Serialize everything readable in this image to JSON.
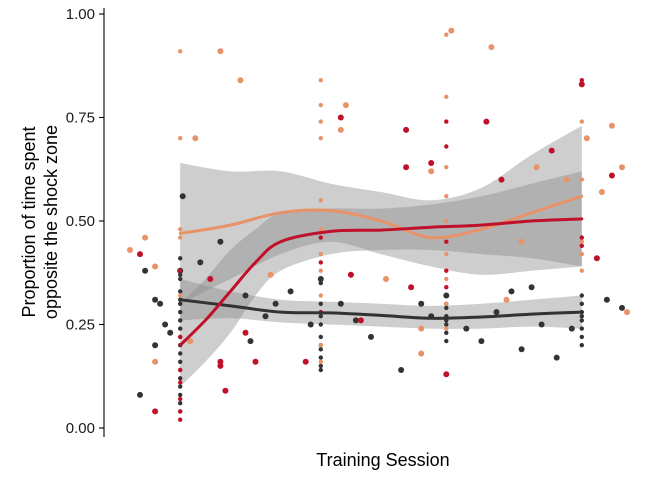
{
  "chart_data": {
    "type": "scatter",
    "xlabel": "Training Session",
    "ylabel_lines": [
      "Proportion of time spent",
      "opposite the shock zone"
    ],
    "ylim": [
      0,
      1
    ],
    "xlim": [
      0,
      10
    ],
    "yticks": [
      0.0,
      0.25,
      0.5,
      0.75,
      1.0
    ],
    "ytick_labels": [
      "0.00",
      "0.25",
      "0.50",
      "0.75",
      "1.00"
    ],
    "x_tick_labels_shown": false,
    "grid": false,
    "legend": "none",
    "series": [
      {
        "color": "#333333",
        "smooth_x": [
          1,
          2,
          3,
          4,
          5,
          6,
          7,
          8,
          9
        ],
        "smooth_y": [
          0.31,
          0.295,
          0.28,
          0.278,
          0.272,
          0.265,
          0.268,
          0.275,
          0.28
        ],
        "band_low": [
          0.26,
          0.265,
          0.255,
          0.25,
          0.245,
          0.24,
          0.24,
          0.245,
          0.24
        ],
        "band_high": [
          0.36,
          0.33,
          0.31,
          0.305,
          0.3,
          0.295,
          0.3,
          0.31,
          0.32
        ],
        "points": [
          [
            0.2,
            0.08
          ],
          [
            0.5,
            0.31
          ],
          [
            0.7,
            0.25
          ],
          [
            0.8,
            0.23
          ],
          [
            1.0,
            0.38
          ],
          [
            0.6,
            0.3
          ],
          [
            1.4,
            0.4
          ],
          [
            0.3,
            0.38
          ],
          [
            1.05,
            0.56
          ],
          [
            0.5,
            0.2
          ],
          [
            2.3,
            0.32
          ],
          [
            2.4,
            0.21
          ],
          [
            2.7,
            0.27
          ],
          [
            2.9,
            0.3
          ],
          [
            3.2,
            0.33
          ],
          [
            3.6,
            0.25
          ],
          [
            4.2,
            0.3
          ],
          [
            4.5,
            0.26
          ],
          [
            4.8,
            0.22
          ],
          [
            5.4,
            0.14
          ],
          [
            6.0,
            0.27
          ],
          [
            6.3,
            0.32
          ],
          [
            6.7,
            0.24
          ],
          [
            7.0,
            0.21
          ],
          [
            7.3,
            0.28
          ],
          [
            7.8,
            0.19
          ],
          [
            8.2,
            0.25
          ],
          [
            8.5,
            0.17
          ],
          [
            8.8,
            0.24
          ],
          [
            9.5,
            0.31
          ],
          [
            9.8,
            0.29
          ],
          [
            1.8,
            0.45
          ],
          [
            3.8,
            0.36
          ],
          [
            5.8,
            0.3
          ],
          [
            7.6,
            0.33
          ],
          [
            8.0,
            0.34
          ]
        ],
        "column_points": [
          [
            1,
            0.36
          ],
          [
            1,
            0.33
          ],
          [
            1,
            0.31
          ],
          [
            1,
            0.28
          ],
          [
            1,
            0.26
          ],
          [
            1,
            0.24
          ],
          [
            1,
            0.22
          ],
          [
            1,
            0.2
          ],
          [
            1,
            0.18
          ],
          [
            1,
            0.16
          ],
          [
            1,
            0.14
          ],
          [
            1,
            0.12
          ],
          [
            1,
            0.1
          ],
          [
            1,
            0.08
          ],
          [
            1,
            0.06
          ],
          [
            1,
            0.04
          ],
          [
            1,
            0.3
          ],
          [
            1,
            0.41
          ],
          [
            1,
            0.37
          ],
          [
            3.8,
            0.35
          ],
          [
            3.8,
            0.3
          ],
          [
            3.8,
            0.27
          ],
          [
            3.8,
            0.25
          ],
          [
            3.8,
            0.22
          ],
          [
            3.8,
            0.2
          ],
          [
            3.8,
            0.17
          ],
          [
            3.8,
            0.15
          ],
          [
            3.8,
            0.14
          ],
          [
            3.8,
            0.19
          ],
          [
            6.3,
            0.3
          ],
          [
            6.3,
            0.27
          ],
          [
            6.3,
            0.25
          ],
          [
            6.3,
            0.23
          ],
          [
            6.3,
            0.21
          ],
          [
            6.3,
            0.29
          ],
          [
            6.3,
            0.26
          ],
          [
            9,
            0.3
          ],
          [
            9,
            0.28
          ],
          [
            9,
            0.26
          ],
          [
            9,
            0.24
          ],
          [
            9,
            0.22
          ],
          [
            9,
            0.2
          ],
          [
            9,
            0.32
          ],
          [
            9,
            0.27
          ]
        ]
      },
      {
        "color": "#e8926a",
        "smooth_x": [
          1,
          2,
          3,
          4,
          5,
          6,
          7,
          8,
          9
        ],
        "smooth_y": [
          0.47,
          0.49,
          0.52,
          0.525,
          0.5,
          0.46,
          0.48,
          0.52,
          0.56
        ],
        "band_low": [
          0.3,
          0.36,
          0.42,
          0.45,
          0.42,
          0.39,
          0.37,
          0.38,
          0.39
        ],
        "band_high": [
          0.64,
          0.62,
          0.62,
          0.59,
          0.57,
          0.55,
          0.58,
          0.66,
          0.73
        ],
        "points": [
          [
            0.0,
            0.43
          ],
          [
            0.3,
            0.46
          ],
          [
            0.5,
            0.39
          ],
          [
            1.3,
            0.7
          ],
          [
            1.8,
            0.91
          ],
          [
            2.2,
            0.84
          ],
          [
            2.8,
            0.37
          ],
          [
            4.3,
            0.78
          ],
          [
            4.2,
            0.72
          ],
          [
            5.1,
            0.36
          ],
          [
            6.0,
            0.62
          ],
          [
            6.4,
            0.96
          ],
          [
            7.2,
            0.92
          ],
          [
            7.5,
            0.31
          ],
          [
            7.8,
            0.45
          ],
          [
            8.1,
            0.63
          ],
          [
            8.7,
            0.6
          ],
          [
            9.1,
            0.7
          ],
          [
            9.6,
            0.73
          ],
          [
            9.8,
            0.63
          ],
          [
            9.9,
            0.28
          ],
          [
            9.4,
            0.57
          ],
          [
            1.2,
            0.21
          ],
          [
            0.5,
            0.16
          ],
          [
            5.8,
            0.24
          ],
          [
            5.8,
            0.18
          ]
        ],
        "column_points": [
          [
            1,
            0.91
          ],
          [
            1,
            0.7
          ],
          [
            1,
            0.48
          ],
          [
            1,
            0.46
          ],
          [
            1,
            0.32
          ],
          [
            3.8,
            0.84
          ],
          [
            3.8,
            0.78
          ],
          [
            3.8,
            0.74
          ],
          [
            3.8,
            0.7
          ],
          [
            3.8,
            0.55
          ],
          [
            3.8,
            0.48
          ],
          [
            3.8,
            0.42
          ],
          [
            3.8,
            0.38
          ],
          [
            3.8,
            0.32
          ],
          [
            3.8,
            0.2
          ],
          [
            3.8,
            0.16
          ],
          [
            6.3,
            0.95
          ],
          [
            6.3,
            0.8
          ],
          [
            6.3,
            0.63
          ],
          [
            6.3,
            0.56
          ],
          [
            6.3,
            0.5
          ],
          [
            6.3,
            0.42
          ],
          [
            6.3,
            0.36
          ],
          [
            6.3,
            0.3
          ],
          [
            6.3,
            0.24
          ],
          [
            9,
            0.74
          ],
          [
            9,
            0.6
          ],
          [
            9,
            0.45
          ],
          [
            9,
            0.42
          ],
          [
            9,
            0.38
          ]
        ]
      },
      {
        "color": "#c0102a",
        "smooth_x": [
          1,
          1.5,
          2,
          2.5,
          3,
          4,
          5,
          6,
          7,
          8,
          9
        ],
        "smooth_y": [
          0.2,
          0.26,
          0.33,
          0.4,
          0.45,
          0.475,
          0.478,
          0.485,
          0.49,
          0.5,
          0.505
        ],
        "band_low": [
          0.1,
          0.16,
          0.23,
          0.32,
          0.38,
          0.42,
          0.43,
          0.43,
          0.42,
          0.41,
          0.39
        ],
        "band_high": [
          0.3,
          0.36,
          0.43,
          0.48,
          0.52,
          0.53,
          0.53,
          0.54,
          0.56,
          0.59,
          0.62
        ],
        "points": [
          [
            0.2,
            0.42
          ],
          [
            0.5,
            0.04
          ],
          [
            1.6,
            0.36
          ],
          [
            1.8,
            0.16
          ],
          [
            1.8,
            0.15
          ],
          [
            1.9,
            0.09
          ],
          [
            2.3,
            0.23
          ],
          [
            2.5,
            0.16
          ],
          [
            4.4,
            0.37
          ],
          [
            4.2,
            0.75
          ],
          [
            5.5,
            0.72
          ],
          [
            5.5,
            0.63
          ],
          [
            5.6,
            0.34
          ],
          [
            6.0,
            0.64
          ],
          [
            6.3,
            0.13
          ],
          [
            7.1,
            0.74
          ],
          [
            7.4,
            0.6
          ],
          [
            8.4,
            0.67
          ],
          [
            9.0,
            0.83
          ],
          [
            9.3,
            0.41
          ],
          [
            9.6,
            0.61
          ],
          [
            3.5,
            0.16
          ],
          [
            4.6,
            0.26
          ]
        ],
        "column_points": [
          [
            1,
            0.14
          ],
          [
            1,
            0.11
          ],
          [
            1,
            0.07
          ],
          [
            1,
            0.04
          ],
          [
            1,
            0.02
          ],
          [
            1,
            0.38
          ],
          [
            1,
            0.22
          ],
          [
            3.8,
            0.46
          ],
          [
            3.8,
            0.4
          ],
          [
            3.8,
            0.28
          ],
          [
            6.3,
            0.74
          ],
          [
            6.3,
            0.68
          ],
          [
            6.3,
            0.45
          ],
          [
            6.3,
            0.38
          ],
          [
            6.3,
            0.34
          ],
          [
            9,
            0.84
          ],
          [
            9,
            0.46
          ],
          [
            9,
            0.44
          ]
        ]
      }
    ]
  }
}
